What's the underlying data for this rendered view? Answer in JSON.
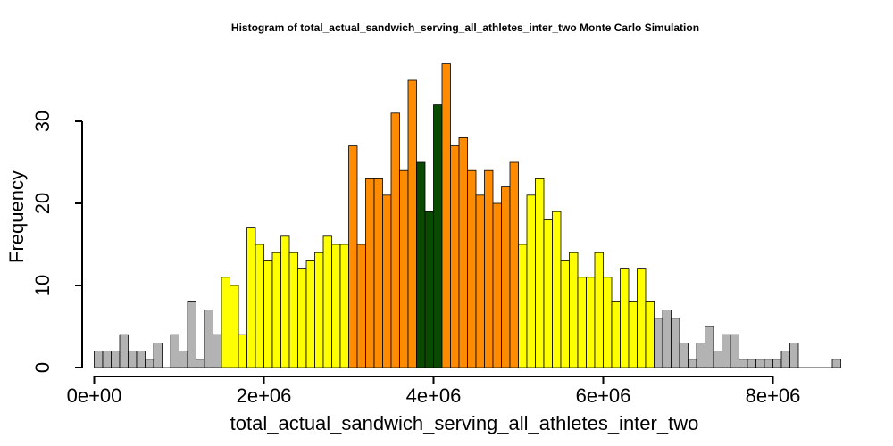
{
  "chart_data": {
    "type": "bar",
    "title": "Histogram of  total_actual_sandwich_serving_all_athletes_inter_two  Monte Carlo Simulation",
    "xlabel": "total_actual_sandwich_serving_all_athletes_inter_two",
    "ylabel": "Frequency",
    "xlim": [
      0,
      8800000
    ],
    "ylim": [
      0,
      37
    ],
    "bin_width": 100000,
    "x_ticks": [
      {
        "value": 0,
        "label": "0e+00"
      },
      {
        "value": 2000000,
        "label": "2e+06"
      },
      {
        "value": 4000000,
        "label": "4e+06"
      },
      {
        "value": 6000000,
        "label": "6e+06"
      },
      {
        "value": 8000000,
        "label": "8e+06"
      }
    ],
    "y_ticks": [
      {
        "value": 0,
        "label": "0"
      },
      {
        "value": 10,
        "label": "10"
      },
      {
        "value": 20,
        "label": "20"
      },
      {
        "value": 30,
        "label": "30"
      }
    ],
    "colors": {
      "gray": "#b3b3b3",
      "yellow": "#ffff00",
      "orange": "#ff8c00",
      "green": "#0a4a00"
    },
    "bins": [
      {
        "x0": 0,
        "count": 2,
        "color": "gray"
      },
      {
        "x0": 100000,
        "count": 2,
        "color": "gray"
      },
      {
        "x0": 200000,
        "count": 2,
        "color": "gray"
      },
      {
        "x0": 300000,
        "count": 4,
        "color": "gray"
      },
      {
        "x0": 400000,
        "count": 2,
        "color": "gray"
      },
      {
        "x0": 500000,
        "count": 2,
        "color": "gray"
      },
      {
        "x0": 600000,
        "count": 1,
        "color": "gray"
      },
      {
        "x0": 700000,
        "count": 3,
        "color": "gray"
      },
      {
        "x0": 800000,
        "count": 0,
        "color": "gray"
      },
      {
        "x0": 900000,
        "count": 4,
        "color": "gray"
      },
      {
        "x0": 1000000,
        "count": 2,
        "color": "gray"
      },
      {
        "x0": 1100000,
        "count": 8,
        "color": "gray"
      },
      {
        "x0": 1200000,
        "count": 1,
        "color": "gray"
      },
      {
        "x0": 1300000,
        "count": 7,
        "color": "gray"
      },
      {
        "x0": 1400000,
        "count": 4,
        "color": "gray"
      },
      {
        "x0": 1500000,
        "count": 11,
        "color": "yellow"
      },
      {
        "x0": 1600000,
        "count": 10,
        "color": "yellow"
      },
      {
        "x0": 1700000,
        "count": 4,
        "color": "yellow"
      },
      {
        "x0": 1800000,
        "count": 17,
        "color": "yellow"
      },
      {
        "x0": 1900000,
        "count": 15,
        "color": "yellow"
      },
      {
        "x0": 2000000,
        "count": 13,
        "color": "yellow"
      },
      {
        "x0": 2100000,
        "count": 14,
        "color": "yellow"
      },
      {
        "x0": 2200000,
        "count": 16,
        "color": "yellow"
      },
      {
        "x0": 2300000,
        "count": 14,
        "color": "yellow"
      },
      {
        "x0": 2400000,
        "count": 12,
        "color": "yellow"
      },
      {
        "x0": 2500000,
        "count": 13,
        "color": "yellow"
      },
      {
        "x0": 2600000,
        "count": 14,
        "color": "yellow"
      },
      {
        "x0": 2700000,
        "count": 16,
        "color": "yellow"
      },
      {
        "x0": 2800000,
        "count": 15,
        "color": "yellow"
      },
      {
        "x0": 2900000,
        "count": 15,
        "color": "yellow"
      },
      {
        "x0": 3000000,
        "count": 27,
        "color": "orange"
      },
      {
        "x0": 3100000,
        "count": 15,
        "color": "orange"
      },
      {
        "x0": 3200000,
        "count": 23,
        "color": "orange"
      },
      {
        "x0": 3300000,
        "count": 23,
        "color": "orange"
      },
      {
        "x0": 3400000,
        "count": 21,
        "color": "orange"
      },
      {
        "x0": 3500000,
        "count": 31,
        "color": "orange"
      },
      {
        "x0": 3600000,
        "count": 24,
        "color": "orange"
      },
      {
        "x0": 3700000,
        "count": 35,
        "color": "orange"
      },
      {
        "x0": 3800000,
        "count": 25,
        "color": "green"
      },
      {
        "x0": 3900000,
        "count": 19,
        "color": "green"
      },
      {
        "x0": 4000000,
        "count": 32,
        "color": "green"
      },
      {
        "x0": 4100000,
        "count": 37,
        "color": "orange"
      },
      {
        "x0": 4200000,
        "count": 27,
        "color": "orange"
      },
      {
        "x0": 4300000,
        "count": 28,
        "color": "orange"
      },
      {
        "x0": 4400000,
        "count": 24,
        "color": "orange"
      },
      {
        "x0": 4500000,
        "count": 21,
        "color": "orange"
      },
      {
        "x0": 4600000,
        "count": 24,
        "color": "orange"
      },
      {
        "x0": 4700000,
        "count": 20,
        "color": "orange"
      },
      {
        "x0": 4800000,
        "count": 22,
        "color": "orange"
      },
      {
        "x0": 4900000,
        "count": 25,
        "color": "orange"
      },
      {
        "x0": 5000000,
        "count": 15,
        "color": "yellow"
      },
      {
        "x0": 5100000,
        "count": 21,
        "color": "yellow"
      },
      {
        "x0": 5200000,
        "count": 23,
        "color": "yellow"
      },
      {
        "x0": 5300000,
        "count": 18,
        "color": "yellow"
      },
      {
        "x0": 5400000,
        "count": 19,
        "color": "yellow"
      },
      {
        "x0": 5500000,
        "count": 13,
        "color": "yellow"
      },
      {
        "x0": 5600000,
        "count": 14,
        "color": "yellow"
      },
      {
        "x0": 5700000,
        "count": 11,
        "color": "yellow"
      },
      {
        "x0": 5800000,
        "count": 11,
        "color": "yellow"
      },
      {
        "x0": 5900000,
        "count": 14,
        "color": "yellow"
      },
      {
        "x0": 6000000,
        "count": 11,
        "color": "yellow"
      },
      {
        "x0": 6100000,
        "count": 8,
        "color": "yellow"
      },
      {
        "x0": 6200000,
        "count": 12,
        "color": "yellow"
      },
      {
        "x0": 6300000,
        "count": 8,
        "color": "yellow"
      },
      {
        "x0": 6400000,
        "count": 12,
        "color": "yellow"
      },
      {
        "x0": 6500000,
        "count": 8,
        "color": "yellow"
      },
      {
        "x0": 6600000,
        "count": 6,
        "color": "gray"
      },
      {
        "x0": 6700000,
        "count": 7,
        "color": "gray"
      },
      {
        "x0": 6800000,
        "count": 6,
        "color": "gray"
      },
      {
        "x0": 6900000,
        "count": 3,
        "color": "gray"
      },
      {
        "x0": 7000000,
        "count": 1,
        "color": "gray"
      },
      {
        "x0": 7100000,
        "count": 3,
        "color": "gray"
      },
      {
        "x0": 7200000,
        "count": 5,
        "color": "gray"
      },
      {
        "x0": 7300000,
        "count": 2,
        "color": "gray"
      },
      {
        "x0": 7400000,
        "count": 4,
        "color": "gray"
      },
      {
        "x0": 7500000,
        "count": 4,
        "color": "gray"
      },
      {
        "x0": 7600000,
        "count": 1,
        "color": "gray"
      },
      {
        "x0": 7700000,
        "count": 1,
        "color": "gray"
      },
      {
        "x0": 7800000,
        "count": 1,
        "color": "gray"
      },
      {
        "x0": 7900000,
        "count": 1,
        "color": "gray"
      },
      {
        "x0": 8000000,
        "count": 1,
        "color": "gray"
      },
      {
        "x0": 8100000,
        "count": 2,
        "color": "gray"
      },
      {
        "x0": 8200000,
        "count": 3,
        "color": "gray"
      },
      {
        "x0": 8300000,
        "count": 0,
        "color": "gray"
      },
      {
        "x0": 8400000,
        "count": 0,
        "color": "gray"
      },
      {
        "x0": 8500000,
        "count": 0,
        "color": "gray"
      },
      {
        "x0": 8600000,
        "count": 0,
        "color": "gray"
      },
      {
        "x0": 8700000,
        "count": 1,
        "color": "gray"
      }
    ]
  }
}
